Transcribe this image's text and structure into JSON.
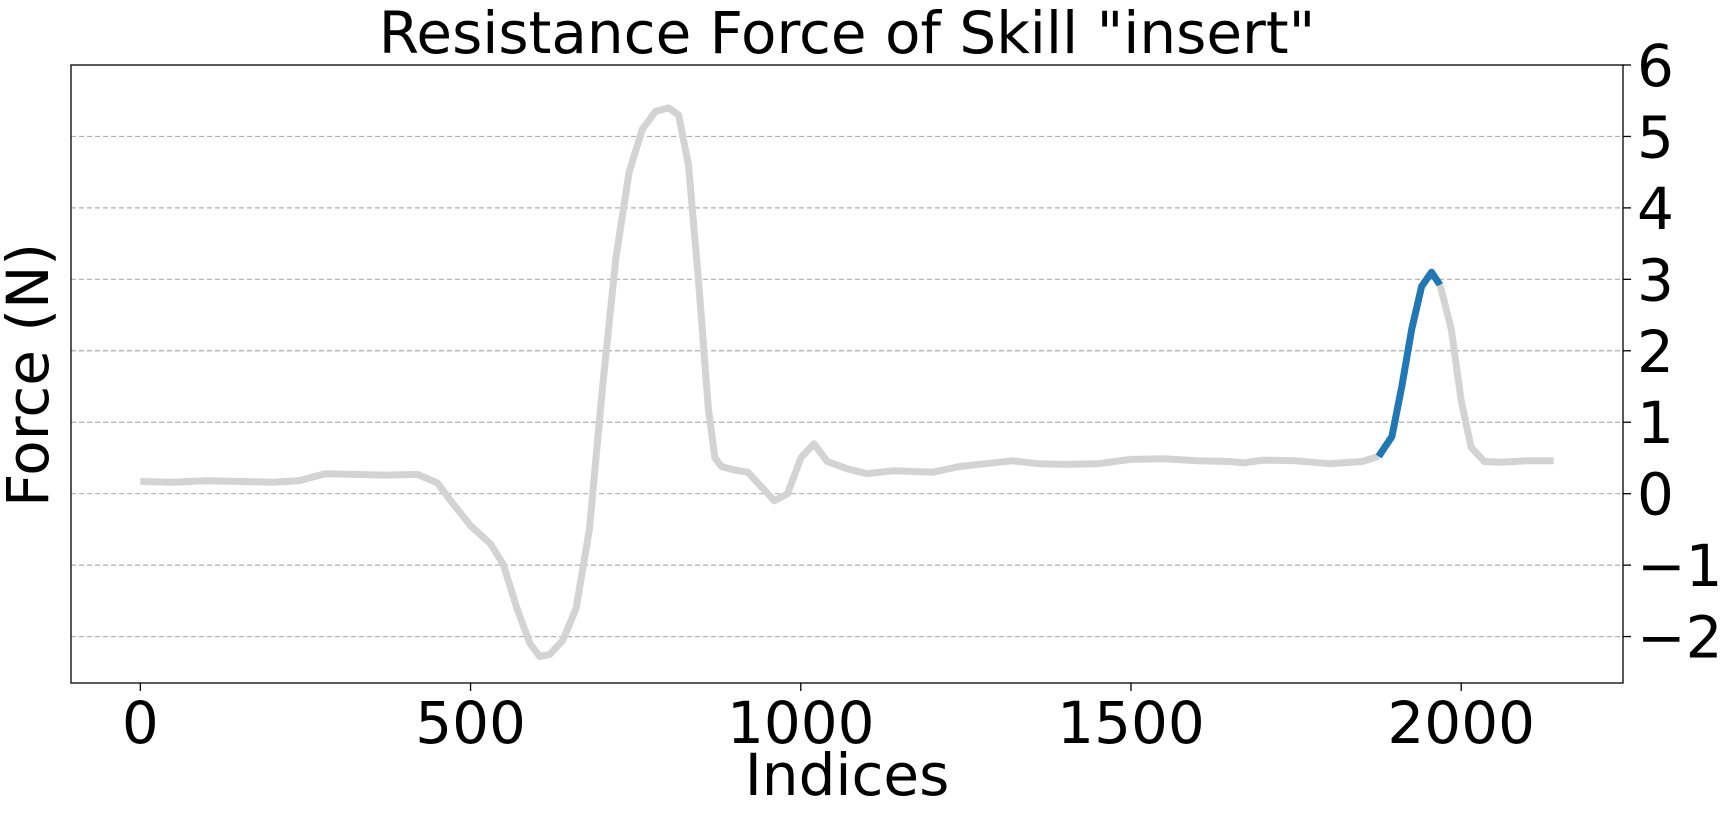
{
  "chart_data": {
    "type": "line",
    "title": "Resistance Force of Skill \"insert\"",
    "xlabel": "Indices",
    "ylabel": "Force (N)",
    "xlim": [
      -105,
      2245
    ],
    "ylim": [
      -2.65,
      6.0
    ],
    "x_ticks": [
      0,
      500,
      1000,
      1500,
      2000
    ],
    "x_tick_labels": [
      "0",
      "500",
      "1000",
      "1500",
      "2000"
    ],
    "y_ticks": [
      -2,
      -1,
      0,
      1,
      2,
      3,
      4,
      5,
      6
    ],
    "y_tick_labels": [
      "−2",
      "−1",
      "0",
      "1",
      "2",
      "3",
      "4",
      "5",
      "6"
    ],
    "y_axis_position": "right",
    "grid": {
      "x": false,
      "y": true,
      "style": "dashed"
    },
    "series": [
      {
        "color": "#d3d3d3",
        "points": [
          [
            0,
            0.17
          ],
          [
            50,
            0.16
          ],
          [
            100,
            0.18
          ],
          [
            150,
            0.17
          ],
          [
            200,
            0.16
          ],
          [
            240,
            0.18
          ],
          [
            280,
            0.28
          ],
          [
            320,
            0.27
          ],
          [
            370,
            0.26
          ],
          [
            420,
            0.27
          ],
          [
            450,
            0.15
          ],
          [
            470,
            -0.1
          ],
          [
            500,
            -0.45
          ],
          [
            530,
            -0.7
          ],
          [
            550,
            -1.0
          ],
          [
            570,
            -1.6
          ],
          [
            590,
            -2.1
          ],
          [
            605,
            -2.28
          ],
          [
            620,
            -2.25
          ],
          [
            640,
            -2.05
          ],
          [
            660,
            -1.6
          ],
          [
            680,
            -0.5
          ],
          [
            700,
            1.5
          ],
          [
            720,
            3.3
          ],
          [
            740,
            4.5
          ],
          [
            760,
            5.1
          ],
          [
            780,
            5.35
          ],
          [
            800,
            5.4
          ],
          [
            815,
            5.3
          ],
          [
            830,
            4.6
          ],
          [
            845,
            3.0
          ],
          [
            860,
            1.2
          ],
          [
            870,
            0.5
          ],
          [
            880,
            0.38
          ],
          [
            900,
            0.33
          ],
          [
            920,
            0.3
          ],
          [
            940,
            0.1
          ],
          [
            960,
            -0.1
          ],
          [
            980,
            0.0
          ],
          [
            1000,
            0.5
          ],
          [
            1020,
            0.7
          ],
          [
            1040,
            0.45
          ],
          [
            1070,
            0.35
          ],
          [
            1100,
            0.28
          ],
          [
            1140,
            0.32
          ],
          [
            1200,
            0.3
          ],
          [
            1240,
            0.38
          ],
          [
            1280,
            0.42
          ],
          [
            1320,
            0.46
          ],
          [
            1360,
            0.42
          ],
          [
            1400,
            0.41
          ],
          [
            1450,
            0.42
          ],
          [
            1500,
            0.48
          ],
          [
            1550,
            0.49
          ],
          [
            1600,
            0.46
          ],
          [
            1650,
            0.45
          ],
          [
            1670,
            0.43
          ],
          [
            1700,
            0.47
          ],
          [
            1750,
            0.46
          ],
          [
            1800,
            0.42
          ],
          [
            1850,
            0.45
          ],
          [
            1875,
            0.52
          ]
        ]
      },
      {
        "color": "#1f77b4",
        "points": [
          [
            1875,
            0.52
          ],
          [
            1895,
            0.8
          ],
          [
            1910,
            1.5
          ],
          [
            1925,
            2.3
          ],
          [
            1940,
            2.9
          ],
          [
            1955,
            3.1
          ],
          [
            1968,
            2.92
          ]
        ]
      },
      {
        "color": "#d3d3d3",
        "points": [
          [
            1968,
            2.92
          ],
          [
            1985,
            2.3
          ],
          [
            2000,
            1.3
          ],
          [
            2015,
            0.65
          ],
          [
            2035,
            0.45
          ],
          [
            2060,
            0.44
          ],
          [
            2100,
            0.46
          ],
          [
            2140,
            0.46
          ]
        ]
      }
    ]
  }
}
